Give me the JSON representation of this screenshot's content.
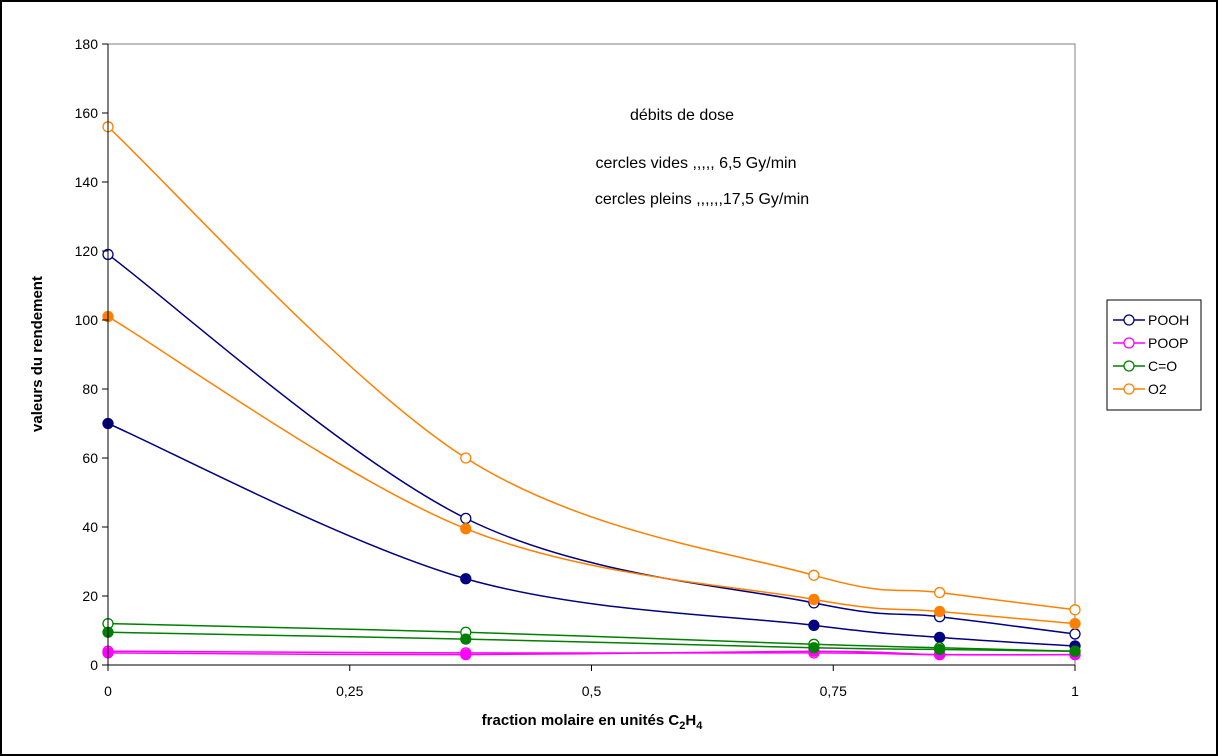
{
  "chart_data": {
    "type": "line",
    "xlabel_main": "fraction molaire en unités C",
    "xlabel_sub1": "2",
    "xlabel_mid": "H",
    "xlabel_sub2": "4",
    "ylabel": "valeurs du rendement",
    "xlim": [
      0,
      1
    ],
    "ylim": [
      0,
      180
    ],
    "x_ticks": [
      0,
      0.25,
      0.5,
      0.75,
      1
    ],
    "x_tick_labels": [
      "0",
      "0,25",
      "0,5",
      "0,75",
      "1"
    ],
    "y_ticks": [
      0,
      20,
      40,
      60,
      80,
      100,
      120,
      140,
      160,
      180
    ],
    "y_tick_labels": [
      "0",
      "20",
      "40",
      "60",
      "80",
      "100",
      "120",
      "140",
      "160",
      "180"
    ],
    "grid": false,
    "legend_position": "right",
    "annotations": {
      "line1": "débits de dose",
      "line2": "cercles vides ,,,,, 6,5 Gy/min",
      "line3": "cercles pleins ,,,,,,17,5 Gy/min"
    },
    "x": [
      0,
      0.37,
      0.73,
      0.86,
      1
    ],
    "legend": [
      {
        "name": "POOH",
        "color": "#000080"
      },
      {
        "name": "POOP",
        "color": "#ff00ff"
      },
      {
        "name": "C=O",
        "color": "#008000"
      },
      {
        "name": "O2",
        "color": "#ff8000"
      }
    ],
    "series": [
      {
        "key": "pooh-open",
        "legend": "POOH",
        "marker": "open",
        "color": "#000080",
        "values": [
          119,
          42.5,
          18,
          14,
          9
        ]
      },
      {
        "key": "pooh-filled",
        "legend": "POOH",
        "marker": "filled",
        "color": "#000080",
        "values": [
          70,
          25,
          11.5,
          8,
          5.5
        ]
      },
      {
        "key": "poop-open",
        "legend": "POOP",
        "marker": "open",
        "color": "#ff00ff",
        "values": [
          4,
          3.5,
          3.5,
          3,
          3
        ]
      },
      {
        "key": "poop-filled",
        "legend": "POOP",
        "marker": "filled",
        "color": "#ff00ff",
        "values": [
          3.5,
          3,
          4,
          3,
          3
        ]
      },
      {
        "key": "co-open",
        "legend": "C=O",
        "marker": "open",
        "color": "#008000",
        "values": [
          12,
          9.5,
          6,
          5,
          4
        ]
      },
      {
        "key": "co-filled",
        "legend": "C=O",
        "marker": "filled",
        "color": "#008000",
        "values": [
          9.5,
          7.5,
          5,
          4.5,
          4
        ]
      },
      {
        "key": "o2-open",
        "legend": "O2",
        "marker": "open",
        "color": "#ff8000",
        "values": [
          156,
          60,
          26,
          21,
          16
        ]
      },
      {
        "key": "o2-filled",
        "legend": "O2",
        "marker": "filled",
        "color": "#ff8000",
        "values": [
          101,
          39.5,
          19,
          15.5,
          12
        ]
      }
    ]
  }
}
